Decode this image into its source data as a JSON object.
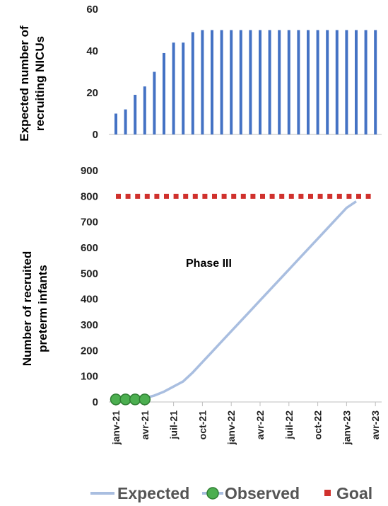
{
  "chart_data": [
    {
      "type": "bar",
      "ylabel_lines": [
        "Expected number of",
        "recruiting NICUs"
      ],
      "ylim": [
        0,
        60
      ],
      "yticks": [
        "0",
        "20",
        "40",
        "60"
      ],
      "color": "#4472C4",
      "values": [
        10,
        12,
        19,
        23,
        30,
        39,
        44,
        44,
        49,
        50,
        50,
        50,
        50,
        50,
        50,
        50,
        50,
        50,
        50,
        50,
        50,
        50,
        50,
        50,
        50,
        50,
        50,
        50
      ],
      "grid": false
    },
    {
      "type": "line",
      "ylabel_lines": [
        "Number of  recruited",
        "preterm infants"
      ],
      "ylim": [
        0,
        900
      ],
      "yticks": [
        "0",
        "100",
        "200",
        "300",
        "400",
        "500",
        "600",
        "700",
        "800",
        "900"
      ],
      "x_tick_labels": [
        "janv-21",
        "avr-21",
        "juil-21",
        "oct-21",
        "janv-22",
        "avr-22",
        "juil-22",
        "oct-22",
        "janv-23",
        "avr-23"
      ],
      "annotation": "Phase III",
      "grid": false,
      "series": [
        {
          "name": "Expected",
          "color": "#A9BEE0",
          "values": [
            10,
            10,
            10,
            15,
            25,
            40,
            60,
            80,
            115,
            155,
            195,
            235,
            275,
            315,
            355,
            395,
            435,
            475,
            515,
            555,
            595,
            635,
            675,
            715,
            755,
            780
          ]
        },
        {
          "name": "Observed",
          "color": "#4CAF50",
          "values": [
            10,
            10,
            10,
            10
          ]
        },
        {
          "name": "Goal",
          "color": "#D0312D",
          "values": [
            800,
            800,
            800,
            800,
            800,
            800,
            800,
            800,
            800,
            800,
            800,
            800,
            800,
            800,
            800,
            800,
            800,
            800,
            800,
            800,
            800,
            800,
            800,
            800,
            800,
            800,
            800,
            800
          ]
        }
      ]
    }
  ]
}
